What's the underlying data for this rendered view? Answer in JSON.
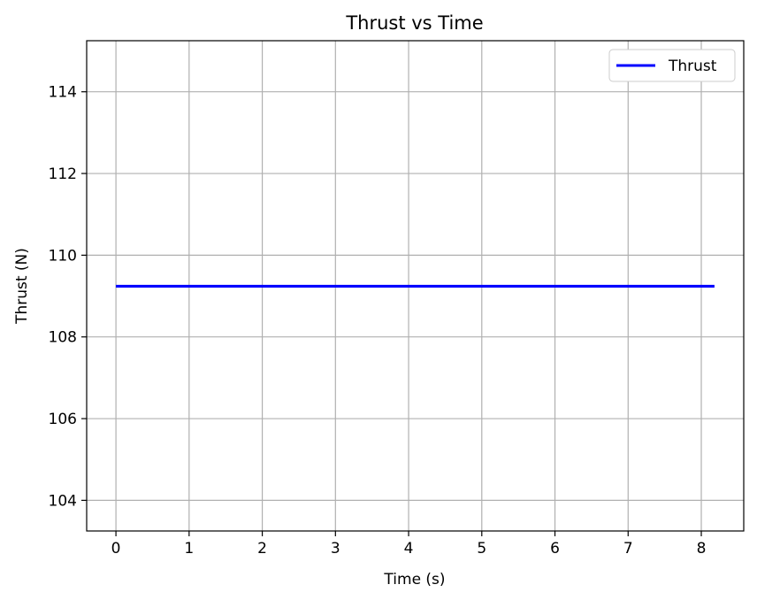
{
  "chart_data": {
    "type": "line",
    "title": "Thrust vs Time",
    "xlabel": "Time (s)",
    "ylabel": "Thrust (N)",
    "xlim": [
      -0.4,
      8.58
    ],
    "ylim": [
      103.25,
      115.25
    ],
    "xticks": [
      0,
      1,
      2,
      3,
      4,
      5,
      6,
      7,
      8
    ],
    "yticks": [
      104,
      106,
      108,
      110,
      112,
      114
    ],
    "grid": true,
    "legend_position": "top-right",
    "series": [
      {
        "name": "Thrust",
        "color": "#0000ff",
        "x": [
          0,
          8.18
        ],
        "y": [
          109.24,
          109.24
        ]
      }
    ]
  }
}
